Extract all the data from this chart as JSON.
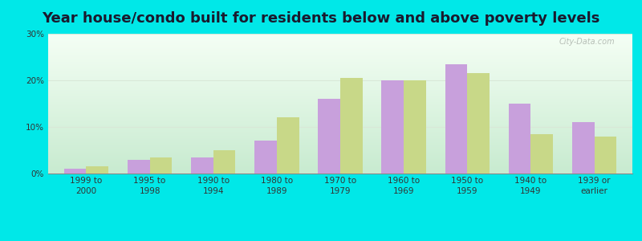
{
  "title": "Year house/condo built for residents below and above poverty levels",
  "categories": [
    "1999 to\n2000",
    "1995 to\n1998",
    "1990 to\n1994",
    "1980 to\n1989",
    "1970 to\n1979",
    "1960 to\n1969",
    "1950 to\n1959",
    "1940 to\n1949",
    "1939 or\nearlier"
  ],
  "below_poverty": [
    1.0,
    3.0,
    3.5,
    7.0,
    16.0,
    20.0,
    23.5,
    15.0,
    11.0
  ],
  "above_poverty": [
    1.5,
    3.5,
    5.0,
    12.0,
    20.5,
    20.0,
    21.5,
    8.5,
    8.0
  ],
  "below_color": "#c8a0dc",
  "above_color": "#c8d888",
  "outer_background": "#00e8e8",
  "ylim": [
    0,
    30
  ],
  "yticks": [
    0,
    10,
    20,
    30
  ],
  "ytick_labels": [
    "0%",
    "10%",
    "20%",
    "30%"
  ],
  "bar_width": 0.35,
  "grid_color": "#e0e8e0",
  "title_fontsize": 13,
  "tick_fontsize": 7.5,
  "legend_fontsize": 8.5,
  "bg_top": "#f5fff5",
  "bg_bottom": "#c8ecd0"
}
